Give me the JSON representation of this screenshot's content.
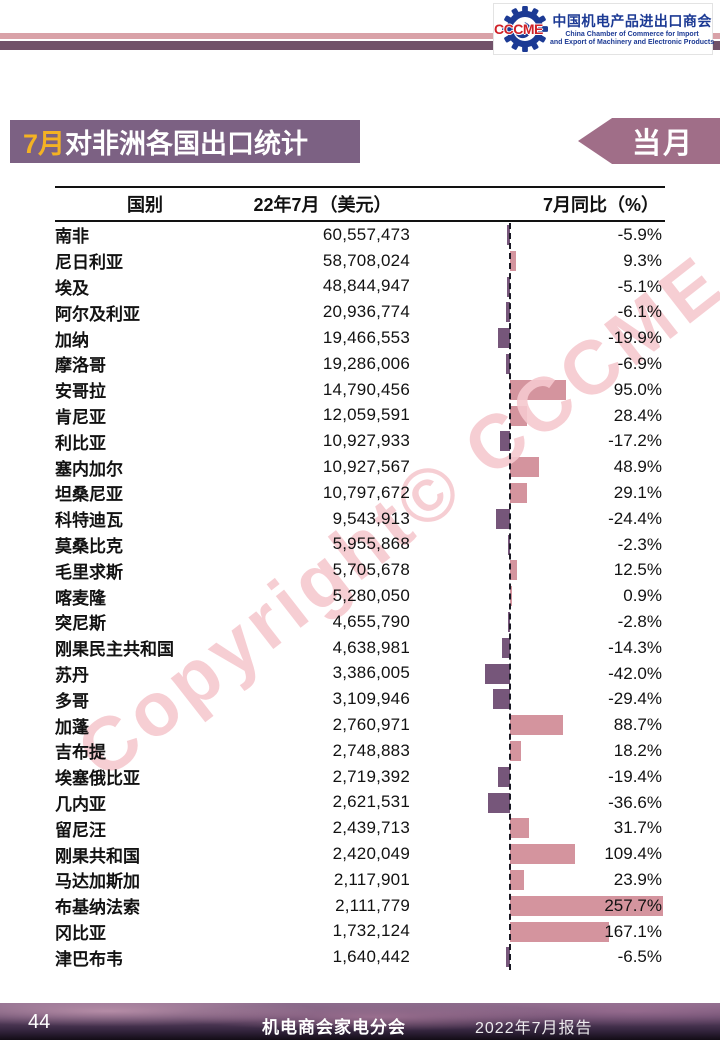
{
  "page": {
    "title_month": "7月",
    "title_rest": "对非洲各国出口统计",
    "badge": "当月",
    "watermark": "Copyright© CCCME"
  },
  "logo": {
    "acronym": "CCCME",
    "cn_name": "中国机电产品进出口商会",
    "en_line1": "China Chamber of Commerce for Import",
    "en_line2": "and Export of Machinery and Electronic Products"
  },
  "table": {
    "headers": {
      "country": "国别",
      "value": "22年7月（美元）",
      "yoy": "7月同比（%）"
    },
    "rows": [
      {
        "country": "南非",
        "value": "60,557,473",
        "yoy": -5.9,
        "yoy_display": "-5.9%"
      },
      {
        "country": "尼日利亚",
        "value": "58,708,024",
        "yoy": 9.3,
        "yoy_display": "9.3%"
      },
      {
        "country": "埃及",
        "value": "48,844,947",
        "yoy": -5.1,
        "yoy_display": "-5.1%"
      },
      {
        "country": "阿尔及利亚",
        "value": "20,936,774",
        "yoy": -6.1,
        "yoy_display": "-6.1%"
      },
      {
        "country": "加纳",
        "value": "19,466,553",
        "yoy": -19.9,
        "yoy_display": "-19.9%"
      },
      {
        "country": "摩洛哥",
        "value": "19,286,006",
        "yoy": -6.9,
        "yoy_display": "-6.9%"
      },
      {
        "country": "安哥拉",
        "value": "14,790,456",
        "yoy": 95.0,
        "yoy_display": "95.0%"
      },
      {
        "country": "肯尼亚",
        "value": "12,059,591",
        "yoy": 28.4,
        "yoy_display": "28.4%"
      },
      {
        "country": "利比亚",
        "value": "10,927,933",
        "yoy": -17.2,
        "yoy_display": "-17.2%"
      },
      {
        "country": "塞内加尔",
        "value": "10,927,567",
        "yoy": 48.9,
        "yoy_display": "48.9%"
      },
      {
        "country": "坦桑尼亚",
        "value": "10,797,672",
        "yoy": 29.1,
        "yoy_display": "29.1%"
      },
      {
        "country": "科特迪瓦",
        "value": "9,543,913",
        "yoy": -24.4,
        "yoy_display": "-24.4%"
      },
      {
        "country": "莫桑比克",
        "value": "5,955,868",
        "yoy": -2.3,
        "yoy_display": "-2.3%"
      },
      {
        "country": "毛里求斯",
        "value": "5,705,678",
        "yoy": 12.5,
        "yoy_display": "12.5%"
      },
      {
        "country": "喀麦隆",
        "value": "5,280,050",
        "yoy": 0.9,
        "yoy_display": "0.9%"
      },
      {
        "country": "突尼斯",
        "value": "4,655,790",
        "yoy": -2.8,
        "yoy_display": "-2.8%"
      },
      {
        "country": "刚果民主共和国",
        "value": "4,638,981",
        "yoy": -14.3,
        "yoy_display": "-14.3%"
      },
      {
        "country": "苏丹",
        "value": "3,386,005",
        "yoy": -42.0,
        "yoy_display": "-42.0%"
      },
      {
        "country": "多哥",
        "value": "3,109,946",
        "yoy": -29.4,
        "yoy_display": "-29.4%"
      },
      {
        "country": "加蓬",
        "value": "2,760,971",
        "yoy": 88.7,
        "yoy_display": "88.7%"
      },
      {
        "country": "吉布提",
        "value": "2,748,883",
        "yoy": 18.2,
        "yoy_display": "18.2%"
      },
      {
        "country": "埃塞俄比亚",
        "value": "2,719,392",
        "yoy": -19.4,
        "yoy_display": "-19.4%"
      },
      {
        "country": "几内亚",
        "value": "2,621,531",
        "yoy": -36.6,
        "yoy_display": "-36.6%"
      },
      {
        "country": "留尼汪",
        "value": "2,439,713",
        "yoy": 31.7,
        "yoy_display": "31.7%"
      },
      {
        "country": "刚果共和国",
        "value": "2,420,049",
        "yoy": 109.4,
        "yoy_display": "109.4%"
      },
      {
        "country": "马达加斯加",
        "value": "2,117,901",
        "yoy": 23.9,
        "yoy_display": "23.9%"
      },
      {
        "country": "布基纳法索",
        "value": "2,111,779",
        "yoy": 257.7,
        "yoy_display": "257.7%"
      },
      {
        "country": "冈比亚",
        "value": "1,732,124",
        "yoy": 167.1,
        "yoy_display": "167.1%"
      },
      {
        "country": "津巴布韦",
        "value": "1,640,442",
        "yoy": -6.5,
        "yoy_display": "-6.5%"
      }
    ]
  },
  "footer": {
    "page_number": "44",
    "center": "机电商会家电分会",
    "right": "2022年7月报告"
  },
  "colors": {
    "title_bar_purple": "#7c6183",
    "badge_mauve": "#a06e88",
    "bar_positive_pink": "#d4949e",
    "bar_negative_purple": "#76567a",
    "stripe_pink": "#d9a2a8",
    "stripe_purple": "#715169",
    "month_amber": "#f4b223",
    "logo_blue": "#1c3a94",
    "logo_red": "#cf2027",
    "watermark_pink": "#f6c9cf"
  },
  "chart_data": {
    "type": "bar",
    "title": "7月对非洲各国出口统计",
    "orientation": "horizontal",
    "categories": [
      "南非",
      "尼日利亚",
      "埃及",
      "阿尔及利亚",
      "加纳",
      "摩洛哥",
      "安哥拉",
      "肯尼亚",
      "利比亚",
      "塞内加尔",
      "坦桑尼亚",
      "科特迪瓦",
      "莫桑比克",
      "毛里求斯",
      "喀麦隆",
      "突尼斯",
      "刚果民主共和国",
      "苏丹",
      "多哥",
      "加蓬",
      "吉布提",
      "埃塞俄比亚",
      "几内亚",
      "留尼汪",
      "刚果共和国",
      "马达加斯加",
      "布基纳法索",
      "冈比亚",
      "津巴布韦"
    ],
    "series": [
      {
        "name": "22年7月（美元）",
        "values": [
          60557473,
          58708024,
          48844947,
          20936774,
          19466553,
          19286006,
          14790456,
          12059591,
          10927933,
          10927567,
          10797672,
          9543913,
          5955868,
          5705678,
          5280050,
          4655790,
          4638981,
          3386005,
          3109946,
          2760971,
          2748883,
          2719392,
          2621531,
          2439713,
          2420049,
          2117901,
          2111779,
          1732124,
          1640442
        ]
      },
      {
        "name": "7月同比（%）",
        "values": [
          -5.9,
          9.3,
          -5.1,
          -6.1,
          -19.9,
          -6.9,
          95.0,
          28.4,
          -17.2,
          48.9,
          29.1,
          -24.4,
          -2.3,
          12.5,
          0.9,
          -2.8,
          -14.3,
          -42.0,
          -29.4,
          88.7,
          18.2,
          -19.4,
          -36.6,
          31.7,
          109.4,
          23.9,
          257.7,
          167.1,
          -6.5
        ]
      }
    ],
    "xlabel": "",
    "ylabel": "",
    "legend": "none",
    "grid": false,
    "axis_note": "dashed zero-line between negative (purple, left) and positive (pink, right) YoY bars"
  }
}
